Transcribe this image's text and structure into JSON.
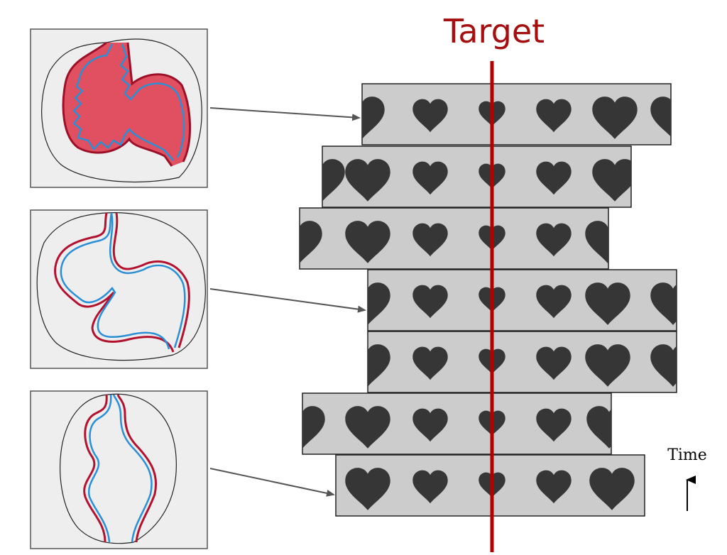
{
  "labels": {
    "target": "Target",
    "time": "Time"
  },
  "colors": {
    "target_line": "#b30000",
    "target_text": "#a50f0f",
    "strip_fill": "#cccccc",
    "heart_fill": "#363636",
    "panel_fill": "#eeeeee",
    "contour_outer": "#b3122f",
    "contour_inner": "#2b8fd6",
    "contour_fill": "#e05060",
    "arrow": "#555555"
  },
  "panels": [
    {
      "name": "panel-top",
      "state": "highly-contracted"
    },
    {
      "name": "panel-middle",
      "state": "partially-contracted"
    },
    {
      "name": "panel-bottom",
      "state": "relaxed"
    }
  ],
  "strips": [
    {
      "name": "strip-1",
      "heart_sizes": [
        2,
        1,
        0.5,
        1,
        2,
        2
      ]
    },
    {
      "name": "strip-2",
      "heart_sizes": [
        2,
        2,
        1,
        0.5,
        1,
        2
      ]
    },
    {
      "name": "strip-3",
      "heart_sizes": [
        2,
        2,
        1,
        0.5,
        1,
        2
      ]
    },
    {
      "name": "strip-4",
      "heart_sizes": [
        2,
        1,
        0.5,
        1,
        2,
        2
      ]
    },
    {
      "name": "strip-5",
      "heart_sizes": [
        2,
        1,
        0.5,
        1,
        2,
        2
      ]
    },
    {
      "name": "strip-6",
      "heart_sizes": [
        2,
        2,
        1,
        0.5,
        1,
        2
      ]
    },
    {
      "name": "strip-7",
      "heart_sizes": [
        2,
        1,
        0.5,
        1,
        2
      ]
    }
  ],
  "time_arrow_direction": "up"
}
